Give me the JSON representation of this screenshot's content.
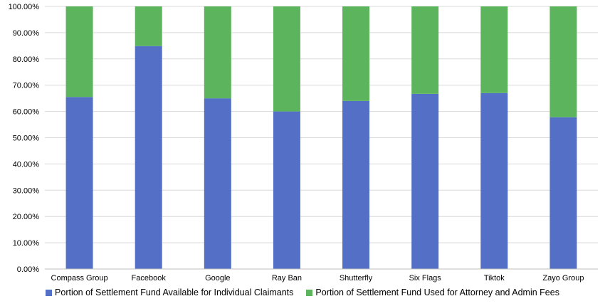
{
  "chart_data": {
    "type": "bar",
    "stacked": true,
    "categories": [
      "Compass Group",
      "Facebook",
      "Google",
      "Ray Ban",
      "Shutterfly",
      "Six Flags",
      "Tiktok",
      "Zayo Group"
    ],
    "series": [
      {
        "name": "Portion of Settlement Fund Available for Individual Claimants",
        "color": "#5470c6",
        "values": [
          65.5,
          84.9,
          65.0,
          60.0,
          64.0,
          66.7,
          67.0,
          57.8
        ]
      },
      {
        "name": "Portion of Settlement Fund Used for Attorney and Admin Fees",
        "color": "#5cb55c",
        "values": [
          34.5,
          15.1,
          35.0,
          40.0,
          36.0,
          33.3,
          33.0,
          42.2
        ]
      }
    ],
    "ylim": [
      0,
      100
    ],
    "yticks": [
      "0.00%",
      "10.00%",
      "20.00%",
      "30.00%",
      "40.00%",
      "50.00%",
      "60.00%",
      "70.00%",
      "80.00%",
      "90.00%",
      "100.00%"
    ],
    "grid": true,
    "legend_position": "bottom"
  }
}
